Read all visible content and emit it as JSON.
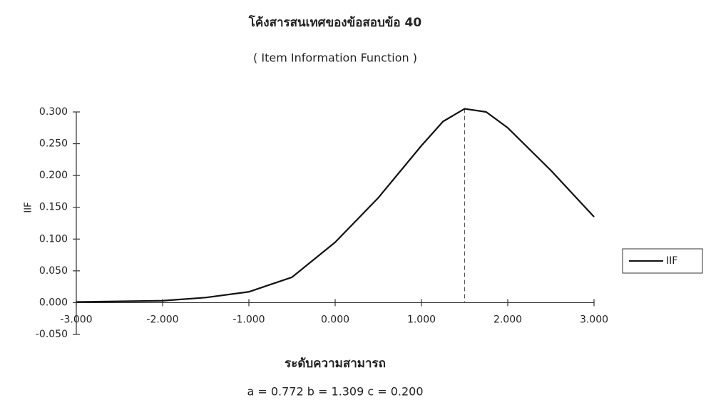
{
  "chart_data": {
    "type": "line",
    "title": "โค้งสารสนเทศของข้อสอบข้อ 40",
    "subtitle": "( Item Information Function )",
    "x_label": "ระดับความสามารถ",
    "y_label": "IIF",
    "annotation": "a = 0.772 b = 1.309 c = 0.200",
    "x": [
      -3,
      -2.5,
      -2,
      -1.5,
      -1,
      -0.5,
      0,
      0.5,
      1,
      1.25,
      1.5,
      1.75,
      2,
      2.5,
      3
    ],
    "series": [
      {
        "name": "IIF",
        "color": "#111111",
        "values": [
          0.001,
          0.002,
          0.003,
          0.008,
          0.017,
          0.04,
          0.095,
          0.165,
          0.247,
          0.285,
          0.305,
          0.3,
          0.275,
          0.208,
          0.135
        ]
      }
    ],
    "vline_x": 1.5,
    "xlim": [
      -3,
      3
    ],
    "xticks": [
      {
        "value": -3,
        "label": "-3.000"
      },
      {
        "value": -2,
        "label": "-2.000"
      },
      {
        "value": -1,
        "label": "-1.000"
      },
      {
        "value": 0,
        "label": "0.000"
      },
      {
        "value": 1,
        "label": "1.000"
      },
      {
        "value": 2,
        "label": "2.000"
      },
      {
        "value": 3,
        "label": "3.000"
      }
    ],
    "ylim": [
      -0.05,
      0.3
    ],
    "yticks": [
      {
        "value": -0.05,
        "label": "-0.050"
      },
      {
        "value": 0,
        "label": "0.000"
      },
      {
        "value": 0.05,
        "label": "0.050"
      },
      {
        "value": 0.1,
        "label": "0.100"
      },
      {
        "value": 0.15,
        "label": "0.150"
      },
      {
        "value": 0.2,
        "label": "0.200"
      },
      {
        "value": 0.25,
        "label": "0.250"
      },
      {
        "value": 0.3,
        "label": "0.300"
      }
    ],
    "grid": false,
    "legend": "right"
  }
}
